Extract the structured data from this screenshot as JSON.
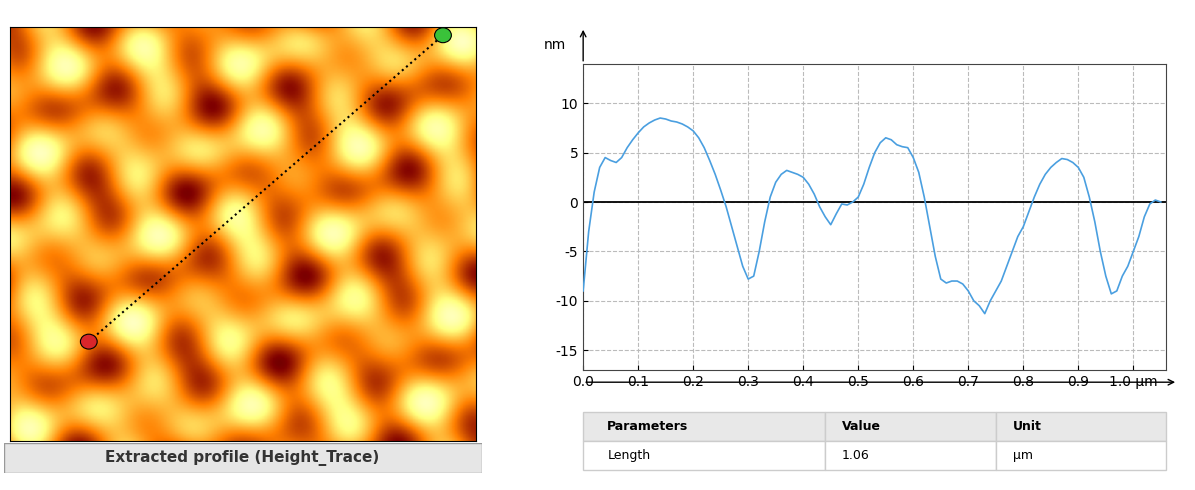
{
  "chart_data": {
    "type": "line",
    "y_label": "nm",
    "x": [
      0.0,
      0.01,
      0.02,
      0.03,
      0.04,
      0.05,
      0.06,
      0.07,
      0.08,
      0.09,
      0.1,
      0.11,
      0.12,
      0.13,
      0.14,
      0.15,
      0.16,
      0.17,
      0.18,
      0.19,
      0.2,
      0.21,
      0.22,
      0.23,
      0.24,
      0.25,
      0.26,
      0.27,
      0.28,
      0.29,
      0.3,
      0.31,
      0.32,
      0.33,
      0.34,
      0.35,
      0.36,
      0.37,
      0.38,
      0.39,
      0.4,
      0.41,
      0.42,
      0.43,
      0.44,
      0.45,
      0.46,
      0.47,
      0.48,
      0.49,
      0.5,
      0.51,
      0.52,
      0.53,
      0.54,
      0.55,
      0.56,
      0.57,
      0.58,
      0.59,
      0.6,
      0.61,
      0.62,
      0.63,
      0.64,
      0.65,
      0.66,
      0.67,
      0.68,
      0.69,
      0.7,
      0.71,
      0.72,
      0.73,
      0.74,
      0.75,
      0.76,
      0.77,
      0.78,
      0.79,
      0.8,
      0.81,
      0.82,
      0.83,
      0.84,
      0.85,
      0.86,
      0.87,
      0.88,
      0.89,
      0.9,
      0.91,
      0.92,
      0.93,
      0.94,
      0.95,
      0.96,
      0.97,
      0.98,
      0.99,
      1.0,
      1.01,
      1.02,
      1.03,
      1.04,
      1.05
    ],
    "values": [
      -9,
      -3,
      1,
      3.5,
      4.5,
      4.2,
      4.0,
      4.5,
      5.5,
      6.3,
      7.0,
      7.6,
      8.0,
      8.3,
      8.5,
      8.4,
      8.2,
      8.1,
      7.9,
      7.6,
      7.2,
      6.5,
      5.5,
      4.2,
      2.8,
      1.2,
      -0.5,
      -2.5,
      -4.5,
      -6.5,
      -7.8,
      -7.5,
      -5,
      -2,
      0.5,
      2,
      2.8,
      3.2,
      3.0,
      2.8,
      2.5,
      1.8,
      0.8,
      -0.5,
      -1.5,
      -2.3,
      -1.2,
      -0.2,
      -0.3,
      0.0,
      0.5,
      1.8,
      3.5,
      5.0,
      6.0,
      6.5,
      6.3,
      5.8,
      5.6,
      5.5,
      4.5,
      3.0,
      0.5,
      -2.5,
      -5.5,
      -7.8,
      -8.2,
      -8.0,
      -8.0,
      -8.3,
      -9.0,
      -10.0,
      -10.5,
      -11.3,
      -10.0,
      -9.0,
      -8.0,
      -6.5,
      -5.0,
      -3.5,
      -2.5,
      -1.0,
      0.5,
      1.8,
      2.8,
      3.5,
      4.0,
      4.4,
      4.3,
      4.0,
      3.5,
      2.5,
      0.5,
      -2.0,
      -5.0,
      -7.5,
      -9.3,
      -9.0,
      -7.5,
      -6.5,
      -5.0,
      -3.5,
      -1.5,
      -0.2,
      0.2,
      0.0
    ],
    "color": "#4a9fe0",
    "baseline": 0,
    "xlim": [
      0.0,
      1.06
    ],
    "ylim": [
      -17,
      14
    ],
    "xticks": [
      0.0,
      0.1,
      0.2,
      0.3,
      0.4,
      0.5,
      0.6,
      0.7,
      0.8,
      0.9,
      {
        "value": 1.0,
        "label": "1.0 µm"
      }
    ],
    "yticks": [
      -15,
      -10,
      -5,
      0,
      5,
      10
    ],
    "grid": true
  },
  "image_panel": {
    "caption": "Extracted profile (Height_Trace)"
  },
  "table": {
    "header": [
      "Parameters",
      "Value",
      "Unit"
    ],
    "rows": [
      [
        "Length",
        1.06,
        "µm"
      ]
    ]
  }
}
